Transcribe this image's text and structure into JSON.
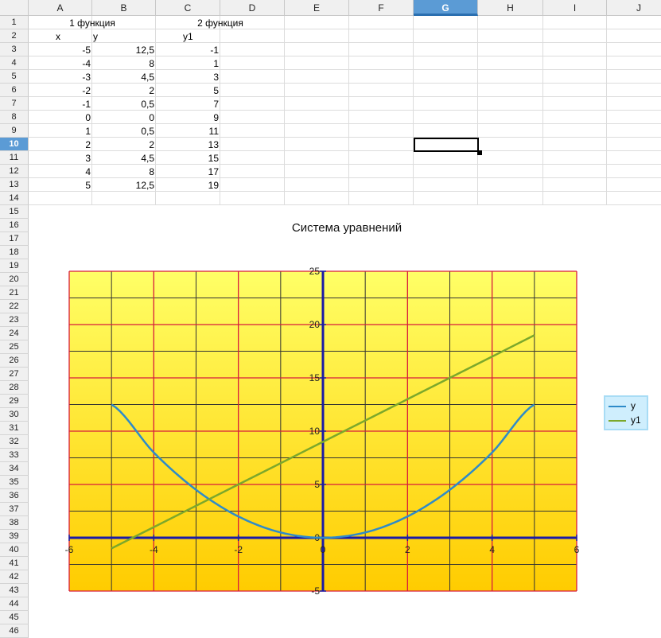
{
  "sheet": {
    "columns": [
      "A",
      "B",
      "C",
      "D",
      "E",
      "F",
      "G",
      "H",
      "I",
      "J"
    ],
    "selected_column": "G",
    "rows": [
      "1",
      "2",
      "3",
      "4",
      "5",
      "6",
      "7",
      "8",
      "9",
      "10",
      "11",
      "12",
      "13",
      "14",
      "15",
      "16",
      "17",
      "18",
      "19",
      "20",
      "21",
      "22",
      "23",
      "24",
      "25",
      "26",
      "27",
      "28",
      "29",
      "30",
      "31",
      "32",
      "33",
      "34",
      "35",
      "36",
      "37",
      "38",
      "39",
      "40",
      "41",
      "42",
      "43",
      "44",
      "45",
      "46"
    ],
    "selected_row": "10",
    "header_row1": {
      "func1": "1 функция",
      "func2": "2 функция"
    },
    "header_row2": {
      "x": "x",
      "y": "y",
      "y1": "y1"
    },
    "data": [
      {
        "x": "-5",
        "y": "12,5",
        "y1": "-1"
      },
      {
        "x": "-4",
        "y": "8",
        "y1": "1"
      },
      {
        "x": "-3",
        "y": "4,5",
        "y1": "3"
      },
      {
        "x": "-2",
        "y": "2",
        "y1": "5"
      },
      {
        "x": "-1",
        "y": "0,5",
        "y1": "7"
      },
      {
        "x": "0",
        "y": "0",
        "y1": "9"
      },
      {
        "x": "1",
        "y": "0,5",
        "y1": "11"
      },
      {
        "x": "2",
        "y": "2",
        "y1": "13"
      },
      {
        "x": "3",
        "y": "4,5",
        "y1": "15"
      },
      {
        "x": "4",
        "y": "8",
        "y1": "17"
      },
      {
        "x": "5",
        "y": "12,5",
        "y1": "19"
      }
    ]
  },
  "chart_data": {
    "type": "line",
    "title": "Система уравнений",
    "xlabel": "",
    "ylabel": "",
    "xlim": [
      -6,
      6
    ],
    "ylim": [
      -5,
      25
    ],
    "x_ticks": [
      "-6",
      "-4",
      "-2",
      "0",
      "2",
      "4",
      "6"
    ],
    "y_ticks": [
      "-5",
      "0",
      "5",
      "10",
      "15",
      "20",
      "25"
    ],
    "grid": true,
    "legend_position": "right",
    "series": [
      {
        "name": "y",
        "color": "#2e8bc9",
        "x": [
          -5,
          -4,
          -3,
          -2,
          -1,
          0,
          1,
          2,
          3,
          4,
          5
        ],
        "values": [
          12.5,
          8,
          4.5,
          2,
          0.5,
          0,
          0.5,
          2,
          4.5,
          8,
          12.5
        ]
      },
      {
        "name": "y1",
        "color": "#7ca82b",
        "x": [
          -5,
          -4,
          -3,
          -2,
          -1,
          0,
          1,
          2,
          3,
          4,
          5
        ],
        "values": [
          -1,
          1,
          3,
          5,
          7,
          9,
          11,
          13,
          15,
          17,
          19
        ]
      }
    ],
    "colors": {
      "plot_top": "#ffff66",
      "plot_bottom": "#ffcc00",
      "major_grid": "#d81b3c",
      "minor_grid": "#333333",
      "axis": "#1a1aa6"
    }
  }
}
